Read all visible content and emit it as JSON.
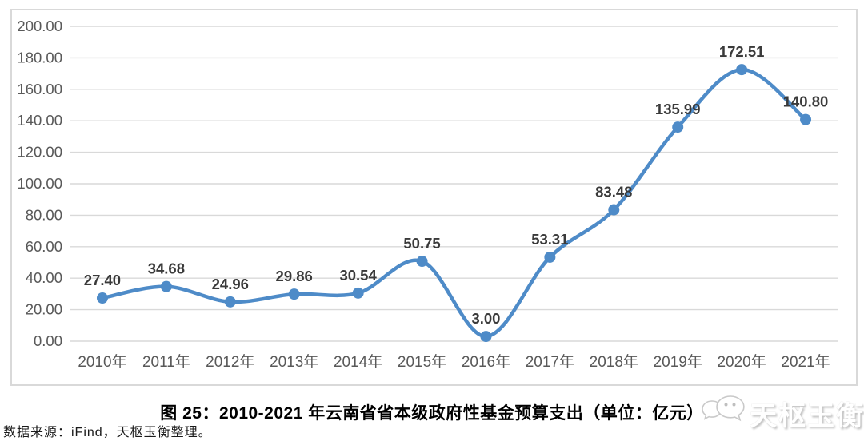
{
  "page": {
    "source_note": "数据来源：iFind，天枢玉衡整理。",
    "watermark": {
      "text": "天枢玉衡",
      "icon": "wechat-logo-icon"
    }
  },
  "chart_data": {
    "type": "line",
    "title": "图 25：2010-2021 年云南省省本级政府性基金预算支出（单位：亿元）",
    "categories": [
      "2010年",
      "2011年",
      "2012年",
      "2013年",
      "2014年",
      "2015年",
      "2016年",
      "2017年",
      "2018年",
      "2019年",
      "2020年",
      "2021年"
    ],
    "values": [
      27.4,
      34.68,
      24.96,
      29.86,
      30.54,
      50.75,
      3.0,
      53.31,
      83.48,
      135.99,
      172.51,
      140.8
    ],
    "value_labels": [
      "27.40",
      "34.68",
      "24.96",
      "29.86",
      "30.54",
      "50.75",
      "3.00",
      "53.31",
      "83.48",
      "135.99",
      "172.51",
      "140.80"
    ],
    "ylim": [
      0,
      200
    ],
    "ytick_step": 20,
    "ytick_decimals": 2,
    "grid": true,
    "legend_position": "none",
    "smooth": true,
    "colors": {
      "line": "#4e8bc8",
      "marker": "#4e8bc8",
      "gridline": "#d9d9d9",
      "axis_text": "#595959",
      "data_label": "#3a3a3a",
      "frame_border": "#d9d9d9"
    }
  }
}
